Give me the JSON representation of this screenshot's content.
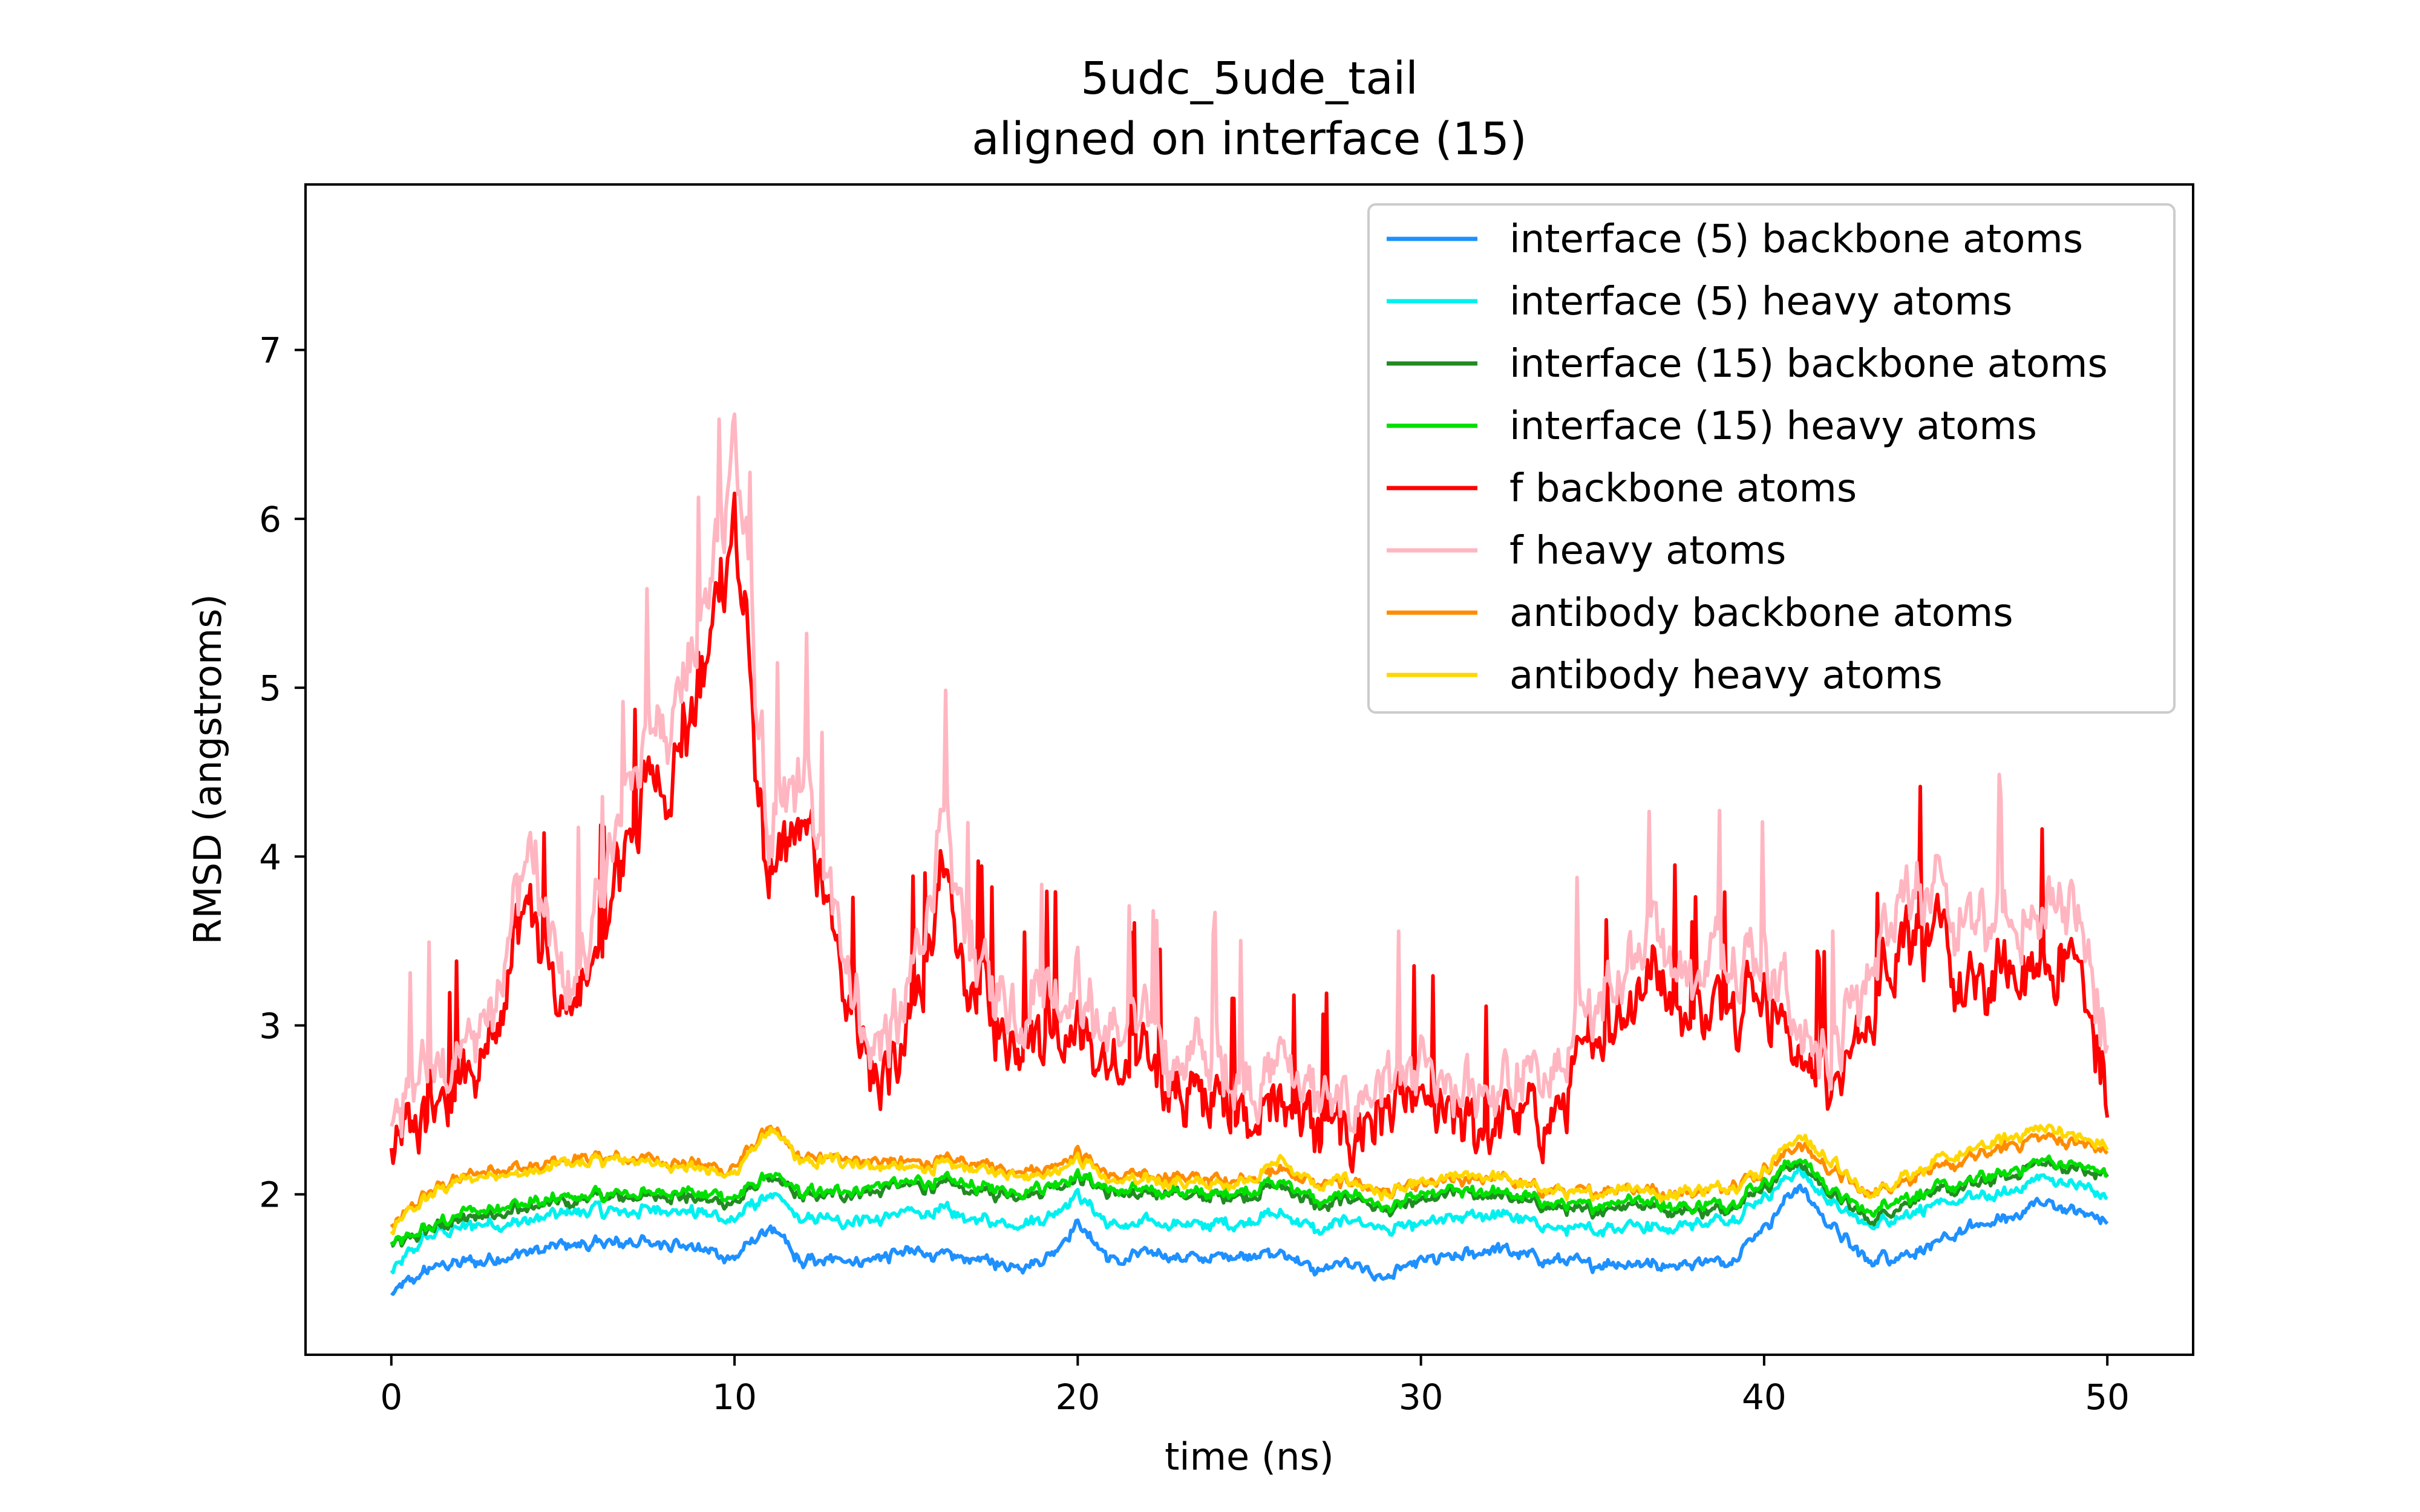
{
  "chart_data": {
    "type": "line",
    "title": "5udc_5ude_tail",
    "subtitle": "aligned on interface (15)",
    "xlabel": "time (ns)",
    "ylabel": "RMSD (angstroms)",
    "xlim": [
      -2.5,
      52.5
    ],
    "ylim": [
      1.05,
      7.98
    ],
    "xticks": [
      0,
      10,
      20,
      30,
      40,
      50
    ],
    "yticks": [
      2,
      3,
      4,
      5,
      6,
      7
    ],
    "grid": false,
    "legend_position": "top-right",
    "sampling_step_ns": 0.05,
    "series": [
      {
        "name": "interface (5) backbone atoms",
        "color": "#1e90ff",
        "x": [
          0,
          1,
          2,
          3,
          4,
          5,
          6,
          7,
          8,
          9,
          10,
          11,
          12,
          13,
          14,
          15,
          16,
          17,
          18,
          19,
          20,
          21,
          22,
          23,
          24,
          25,
          26,
          27,
          28,
          29,
          30,
          31,
          32,
          33,
          34,
          35,
          36,
          37,
          38,
          39,
          40,
          41,
          42,
          43,
          44,
          45,
          46,
          47,
          48,
          49,
          50
        ],
        "values": [
          1.4,
          1.55,
          1.6,
          1.62,
          1.65,
          1.7,
          1.7,
          1.72,
          1.72,
          1.68,
          1.62,
          1.8,
          1.6,
          1.62,
          1.62,
          1.65,
          1.64,
          1.62,
          1.58,
          1.6,
          1.82,
          1.6,
          1.65,
          1.62,
          1.63,
          1.65,
          1.65,
          1.55,
          1.6,
          1.5,
          1.6,
          1.62,
          1.68,
          1.65,
          1.6,
          1.58,
          1.6,
          1.58,
          1.6,
          1.62,
          1.8,
          2.05,
          1.8,
          1.6,
          1.65,
          1.7,
          1.8,
          1.85,
          1.95,
          1.9,
          1.85
        ]
      },
      {
        "name": "interface (5) heavy atoms",
        "color": "#00f0f0",
        "x": [
          0,
          1,
          2,
          3,
          4,
          5,
          6,
          7,
          8,
          9,
          10,
          11,
          12,
          13,
          14,
          15,
          16,
          17,
          18,
          19,
          20,
          21,
          22,
          23,
          24,
          25,
          26,
          27,
          28,
          29,
          30,
          31,
          32,
          33,
          34,
          35,
          36,
          37,
          38,
          39,
          40,
          41,
          42,
          43,
          44,
          45,
          46,
          47,
          48,
          49,
          50
        ],
        "values": [
          1.55,
          1.75,
          1.8,
          1.82,
          1.85,
          1.88,
          1.9,
          1.9,
          1.92,
          1.88,
          1.85,
          2.0,
          1.85,
          1.85,
          1.85,
          1.88,
          1.9,
          1.85,
          1.82,
          1.85,
          2.0,
          1.8,
          1.82,
          1.82,
          1.82,
          1.85,
          1.88,
          1.78,
          1.85,
          1.78,
          1.82,
          1.85,
          1.88,
          1.85,
          1.8,
          1.78,
          1.82,
          1.8,
          1.82,
          1.85,
          1.98,
          2.15,
          1.95,
          1.82,
          1.88,
          1.92,
          1.98,
          2.0,
          2.1,
          2.05,
          2.0
        ]
      },
      {
        "name": "interface (15) backbone atoms",
        "color": "#228b22",
        "x": [
          0,
          1,
          2,
          3,
          4,
          5,
          6,
          7,
          8,
          9,
          10,
          11,
          12,
          13,
          14,
          15,
          16,
          17,
          18,
          19,
          20,
          21,
          22,
          23,
          24,
          25,
          26,
          27,
          28,
          29,
          30,
          31,
          32,
          33,
          34,
          35,
          36,
          37,
          38,
          39,
          40,
          41,
          42,
          43,
          44,
          45,
          46,
          47,
          48,
          49,
          50
        ],
        "values": [
          1.68,
          1.78,
          1.85,
          1.9,
          1.92,
          1.95,
          1.98,
          1.98,
          2.0,
          1.98,
          1.95,
          2.1,
          1.98,
          2.0,
          2.02,
          2.05,
          2.05,
          2.02,
          2.0,
          2.02,
          2.1,
          2.0,
          2.0,
          2.0,
          1.98,
          2.0,
          2.05,
          1.92,
          1.98,
          1.9,
          1.95,
          2.0,
          2.0,
          1.95,
          1.92,
          1.9,
          1.95,
          1.92,
          1.9,
          1.92,
          2.05,
          2.2,
          2.0,
          1.85,
          1.95,
          2.0,
          2.05,
          2.1,
          2.18,
          2.15,
          2.1
        ]
      },
      {
        "name": "interface (15) heavy atoms",
        "color": "#00e000",
        "x": [
          0,
          1,
          2,
          3,
          4,
          5,
          6,
          7,
          8,
          9,
          10,
          11,
          12,
          13,
          14,
          15,
          16,
          17,
          18,
          19,
          20,
          21,
          22,
          23,
          24,
          25,
          26,
          27,
          28,
          29,
          30,
          31,
          32,
          33,
          34,
          35,
          36,
          37,
          38,
          39,
          40,
          41,
          42,
          43,
          44,
          45,
          46,
          47,
          48,
          49,
          50
        ],
        "values": [
          1.7,
          1.8,
          1.88,
          1.92,
          1.95,
          1.98,
          2.0,
          2.0,
          2.02,
          2.0,
          1.98,
          2.12,
          2.0,
          2.02,
          2.05,
          2.08,
          2.08,
          2.05,
          2.02,
          2.05,
          2.12,
          2.02,
          2.02,
          2.02,
          2.0,
          2.02,
          2.08,
          1.95,
          2.0,
          1.92,
          1.98,
          2.02,
          2.02,
          1.98,
          1.95,
          1.92,
          1.98,
          1.95,
          1.92,
          1.95,
          2.08,
          2.22,
          2.02,
          1.88,
          1.98,
          2.02,
          2.08,
          2.12,
          2.2,
          2.18,
          2.12
        ]
      },
      {
        "name": "f backbone atoms",
        "color": "#ff0000",
        "x": [
          0,
          1,
          2,
          3,
          4,
          5,
          6,
          7,
          8,
          9,
          10,
          11,
          12,
          13,
          14,
          15,
          16,
          17,
          18,
          19,
          20,
          21,
          22,
          23,
          24,
          25,
          26,
          27,
          28,
          29,
          30,
          31,
          32,
          33,
          34,
          35,
          36,
          37,
          38,
          39,
          40,
          41,
          42,
          43,
          44,
          45,
          46,
          47,
          48,
          49,
          50
        ],
        "values": [
          2.2,
          2.5,
          2.6,
          3.0,
          3.8,
          3.0,
          3.4,
          4.2,
          4.5,
          5.0,
          6.0,
          3.8,
          4.2,
          3.4,
          2.7,
          2.9,
          3.8,
          3.2,
          2.9,
          3.0,
          3.0,
          2.7,
          2.8,
          2.6,
          2.6,
          2.5,
          2.6,
          2.4,
          2.4,
          2.5,
          2.5,
          2.4,
          2.4,
          2.5,
          2.5,
          2.9,
          3.1,
          3.3,
          3.0,
          3.2,
          3.2,
          2.8,
          2.6,
          3.0,
          3.6,
          3.5,
          3.2,
          3.3,
          3.3,
          3.5,
          2.6
        ]
      },
      {
        "name": "f heavy atoms",
        "color": "#ffb6c1",
        "x": [
          0,
          1,
          2,
          3,
          4,
          5,
          6,
          7,
          8,
          9,
          10,
          11,
          12,
          13,
          14,
          15,
          16,
          17,
          18,
          19,
          20,
          21,
          22,
          23,
          24,
          25,
          26,
          27,
          28,
          29,
          30,
          31,
          32,
          33,
          34,
          35,
          36,
          37,
          38,
          39,
          40,
          41,
          42,
          43,
          44,
          45,
          46,
          47,
          48,
          49,
          50
        ],
        "values": [
          2.4,
          2.7,
          2.8,
          3.2,
          4.1,
          3.2,
          3.6,
          4.5,
          4.8,
          5.3,
          6.5,
          4.1,
          4.5,
          3.6,
          2.9,
          3.1,
          4.1,
          3.4,
          3.1,
          3.2,
          3.2,
          2.9,
          3.0,
          2.8,
          2.8,
          2.7,
          2.8,
          2.6,
          2.6,
          2.7,
          2.7,
          2.6,
          2.6,
          2.7,
          2.7,
          3.1,
          3.4,
          3.6,
          3.3,
          3.5,
          3.5,
          3.0,
          2.8,
          3.3,
          3.9,
          3.8,
          3.5,
          3.6,
          3.6,
          3.8,
          2.9
        ]
      },
      {
        "name": "antibody backbone atoms",
        "color": "#ff8c00",
        "x": [
          0,
          1,
          2,
          3,
          4,
          5,
          6,
          7,
          8,
          9,
          10,
          11,
          12,
          13,
          14,
          15,
          16,
          17,
          18,
          19,
          20,
          21,
          22,
          23,
          24,
          25,
          26,
          27,
          28,
          29,
          30,
          31,
          32,
          33,
          34,
          35,
          36,
          37,
          38,
          39,
          40,
          41,
          42,
          43,
          44,
          45,
          46,
          47,
          48,
          49,
          50
        ],
        "values": [
          1.8,
          2.0,
          2.1,
          2.15,
          2.15,
          2.2,
          2.22,
          2.22,
          2.2,
          2.18,
          2.15,
          2.4,
          2.2,
          2.22,
          2.2,
          2.18,
          2.2,
          2.18,
          2.15,
          2.15,
          2.25,
          2.1,
          2.1,
          2.1,
          2.08,
          2.1,
          2.15,
          2.05,
          2.08,
          2.0,
          2.05,
          2.08,
          2.1,
          2.05,
          2.02,
          2.0,
          2.05,
          2.0,
          2.02,
          2.05,
          2.15,
          2.3,
          2.15,
          2.0,
          2.08,
          2.15,
          2.2,
          2.28,
          2.35,
          2.3,
          2.25
        ]
      },
      {
        "name": "antibody heavy atoms",
        "color": "#ffd700",
        "x": [
          0,
          1,
          2,
          3,
          4,
          5,
          6,
          7,
          8,
          9,
          10,
          11,
          12,
          13,
          14,
          15,
          16,
          17,
          18,
          19,
          20,
          21,
          22,
          23,
          24,
          25,
          26,
          27,
          28,
          29,
          30,
          31,
          32,
          33,
          34,
          35,
          36,
          37,
          38,
          39,
          40,
          41,
          42,
          43,
          44,
          45,
          46,
          47,
          48,
          49,
          50
        ],
        "values": [
          1.78,
          1.98,
          2.08,
          2.12,
          2.12,
          2.18,
          2.2,
          2.2,
          2.18,
          2.15,
          2.12,
          2.38,
          2.18,
          2.2,
          2.18,
          2.15,
          2.18,
          2.15,
          2.12,
          2.12,
          2.22,
          2.08,
          2.08,
          2.08,
          2.05,
          2.1,
          2.2,
          2.05,
          2.08,
          2.0,
          2.05,
          2.1,
          2.12,
          2.05,
          2.02,
          2.0,
          2.05,
          2.0,
          2.02,
          2.05,
          2.15,
          2.35,
          2.18,
          2.0,
          2.1,
          2.18,
          2.25,
          2.32,
          2.4,
          2.35,
          2.28
        ]
      }
    ]
  }
}
